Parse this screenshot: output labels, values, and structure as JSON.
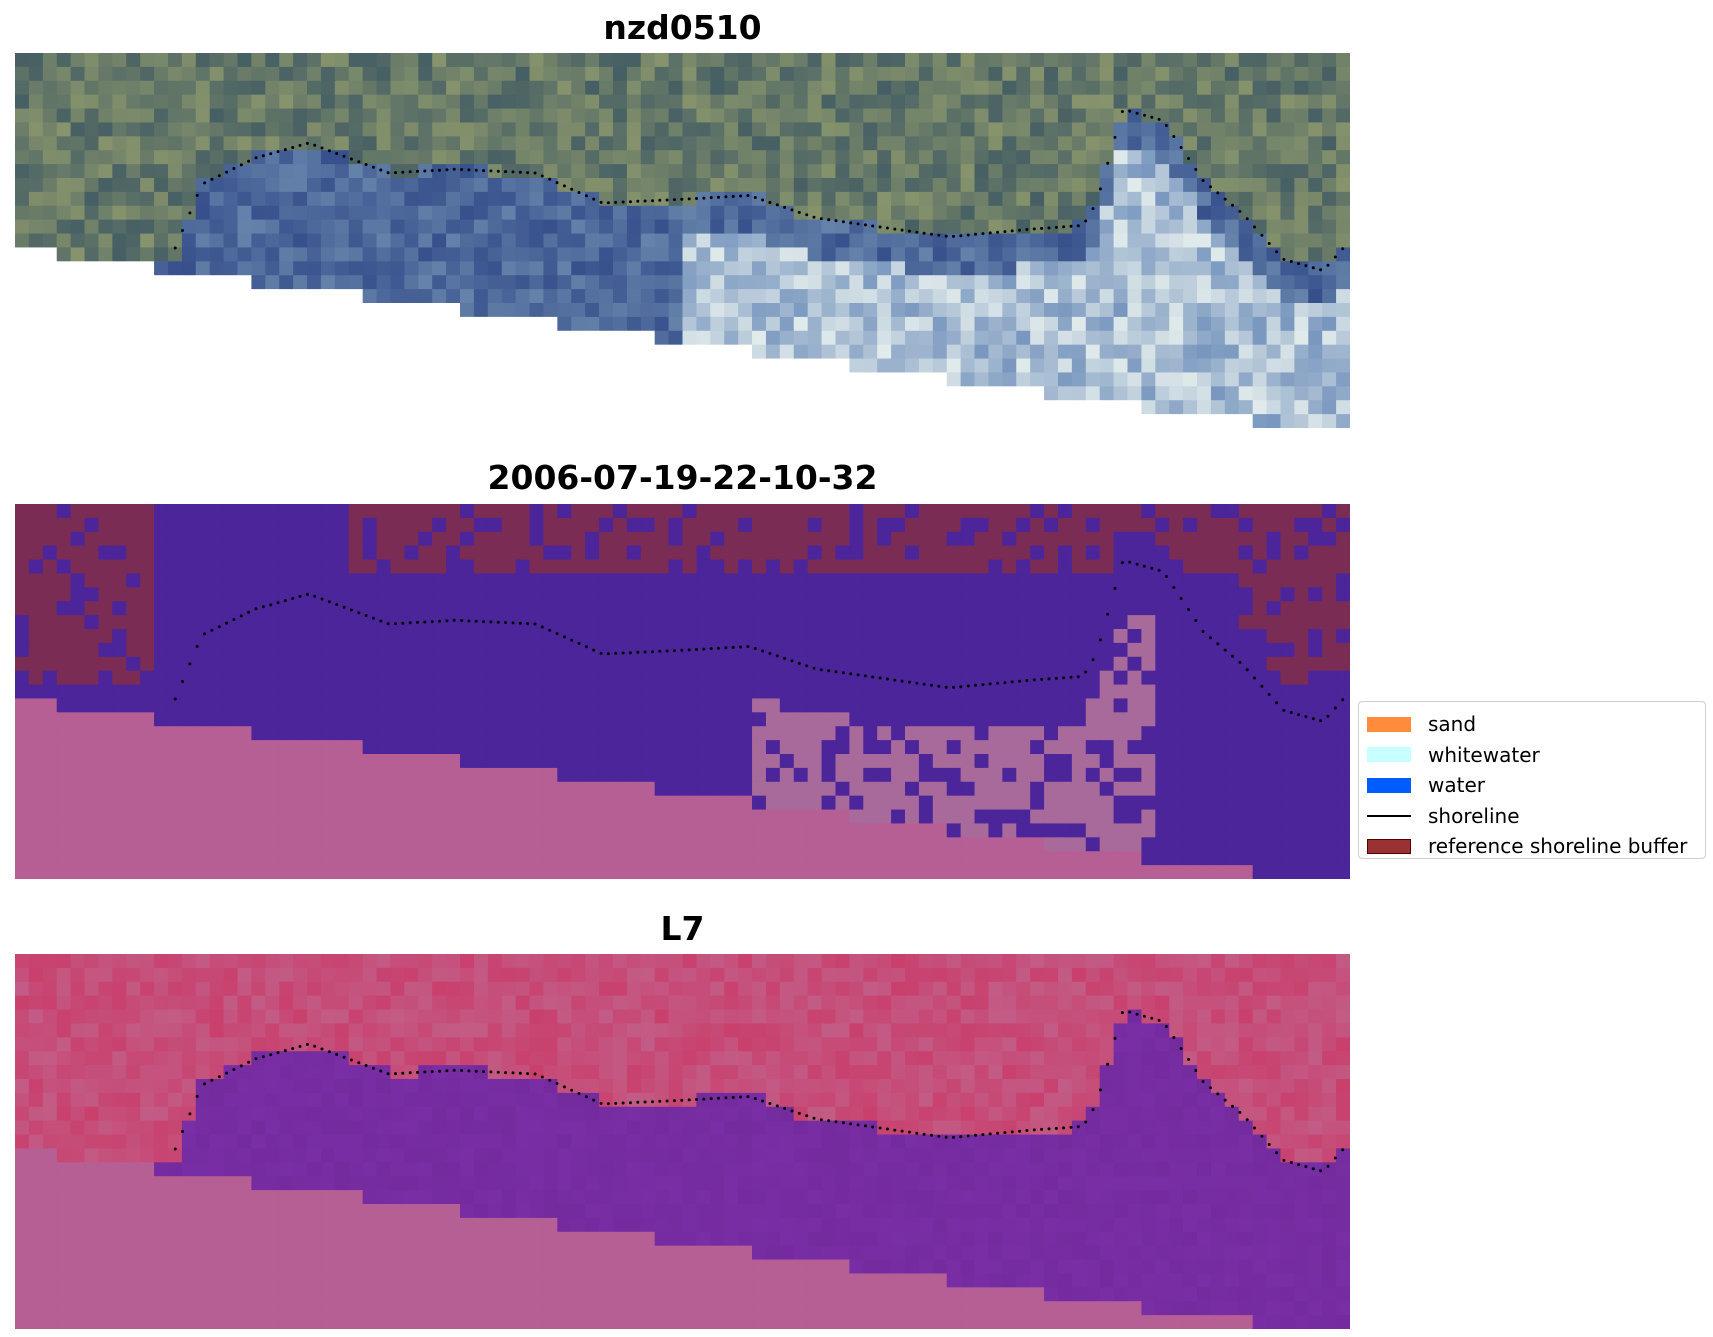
{
  "figure": {
    "panels": [
      {
        "title": "nzd0510",
        "kind": "rgb"
      },
      {
        "title": "2006-07-19-22-10-32",
        "kind": "classified"
      },
      {
        "title": "L7",
        "kind": "index"
      }
    ],
    "legend": {
      "items": [
        {
          "label": "sand",
          "color": "#ff8c3c",
          "type": "patch",
          "edge": "#ff8c3c"
        },
        {
          "label": "whitewater",
          "color": "#c8ffff",
          "type": "patch",
          "edge": "#c8ffff"
        },
        {
          "label": "water",
          "color": "#005cff",
          "type": "patch",
          "edge": "#005cff"
        },
        {
          "label": "shoreline",
          "color": "#000000",
          "type": "line",
          "edge": "#000000"
        },
        {
          "label": "reference shoreline buffer",
          "color": "#993333",
          "type": "patch",
          "edge": "#550000"
        }
      ]
    },
    "colors": {
      "masked_area": "#b65f95",
      "classified_land": "#7a2c55",
      "classified_water": "#4b2599",
      "classified_whitewater": "#a8699b",
      "index_land": "#c9406d",
      "index_water": "#7a2ea6"
    }
  }
}
